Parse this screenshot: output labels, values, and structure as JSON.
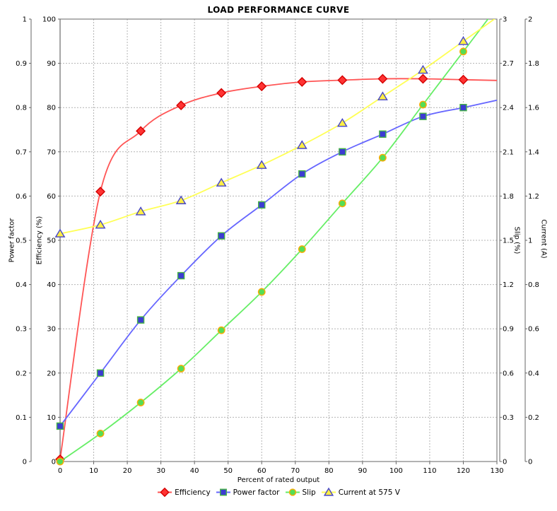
{
  "title": "LOAD PERFORMANCE CURVE",
  "chart_data": {
    "type": "line",
    "title": "LOAD PERFORMANCE CURVE",
    "xlabel": "Percent of rated output",
    "grid": true,
    "legend_position": "bottom",
    "x": [
      0,
      12,
      24,
      36,
      48,
      60,
      72,
      84,
      96,
      108,
      120
    ],
    "series": [
      {
        "name": "Efficiency",
        "axis": "efficiency",
        "marker": "diamond",
        "line_color": "#ff5555",
        "marker_fill": "#ff3333",
        "marker_stroke": "#d40000",
        "values": [
          0.5,
          61,
          74.7,
          80.5,
          83.3,
          84.8,
          85.8,
          86.2,
          86.5,
          86.5,
          86.3
        ]
      },
      {
        "name": "Power factor",
        "axis": "power_factor",
        "marker": "square",
        "line_color": "#6666ff",
        "marker_fill": "#3c3cd2",
        "marker_stroke": "#46b446",
        "values": [
          0.08,
          0.2,
          0.32,
          0.42,
          0.51,
          0.58,
          0.65,
          0.7,
          0.74,
          0.78,
          0.8
        ]
      },
      {
        "name": "Slip",
        "axis": "slip",
        "marker": "circle",
        "line_color": "#66ee66",
        "marker_fill": "#55dd55",
        "marker_stroke": "#ffaa00",
        "values": [
          0,
          0.19,
          0.4,
          0.63,
          0.89,
          1.15,
          1.44,
          1.75,
          2.06,
          2.42,
          2.78
        ]
      },
      {
        "name": "Current at 575 V",
        "axis": "current",
        "marker": "triangle",
        "line_color": "#ffff55",
        "marker_fill": "#ffee44",
        "marker_stroke": "#4646c8",
        "values": [
          1.03,
          1.07,
          1.13,
          1.18,
          1.26,
          1.34,
          1.43,
          1.53,
          1.65,
          1.77,
          1.9
        ]
      }
    ],
    "axes": {
      "x": {
        "label": "Percent of rated output",
        "min": 0,
        "max": 130,
        "step": 10,
        "ticks": [
          "0",
          "10",
          "20",
          "30",
          "40",
          "50",
          "60",
          "70",
          "80",
          "90",
          "100",
          "110",
          "120",
          "130"
        ]
      },
      "power_factor": {
        "label": "Power factor",
        "min": 0,
        "max": 1,
        "step": 0.1,
        "side": "left",
        "ticks": [
          "0",
          "0.1",
          "0.2",
          "0.3",
          "0.4",
          "0.5",
          "0.6",
          "0.7",
          "0.8",
          "0.9",
          "1"
        ]
      },
      "efficiency": {
        "label": "Efficiency (%)",
        "min": 0,
        "max": 100,
        "step": 10,
        "side": "left",
        "ticks": [
          "0",
          "10",
          "20",
          "30",
          "40",
          "50",
          "60",
          "70",
          "80",
          "90",
          "100"
        ]
      },
      "slip": {
        "label": "Slip (%)",
        "min": 0,
        "max": 3,
        "step": 0.3,
        "side": "right",
        "ticks": [
          "0",
          "0.3",
          "0.6",
          "0.9",
          "1.2",
          "1.5",
          "1.8",
          "2.1",
          "2.4",
          "2.7",
          "3"
        ]
      },
      "current": {
        "label": "Current (A)",
        "min": 0,
        "max": 2,
        "step": 0.2,
        "side": "right",
        "ticks": [
          "0",
          "0.2",
          "0.4",
          "0.6",
          "0.8",
          "1",
          "1.2",
          "1.4",
          "1.6",
          "1.8",
          "2"
        ]
      }
    },
    "legend": [
      "Efficiency",
      "Power factor",
      "Slip",
      "Current at 575 V"
    ],
    "colors": {
      "grid": "#b4b4b4",
      "plot_border": "#7f7f7f",
      "axis_line": "#666666"
    }
  }
}
